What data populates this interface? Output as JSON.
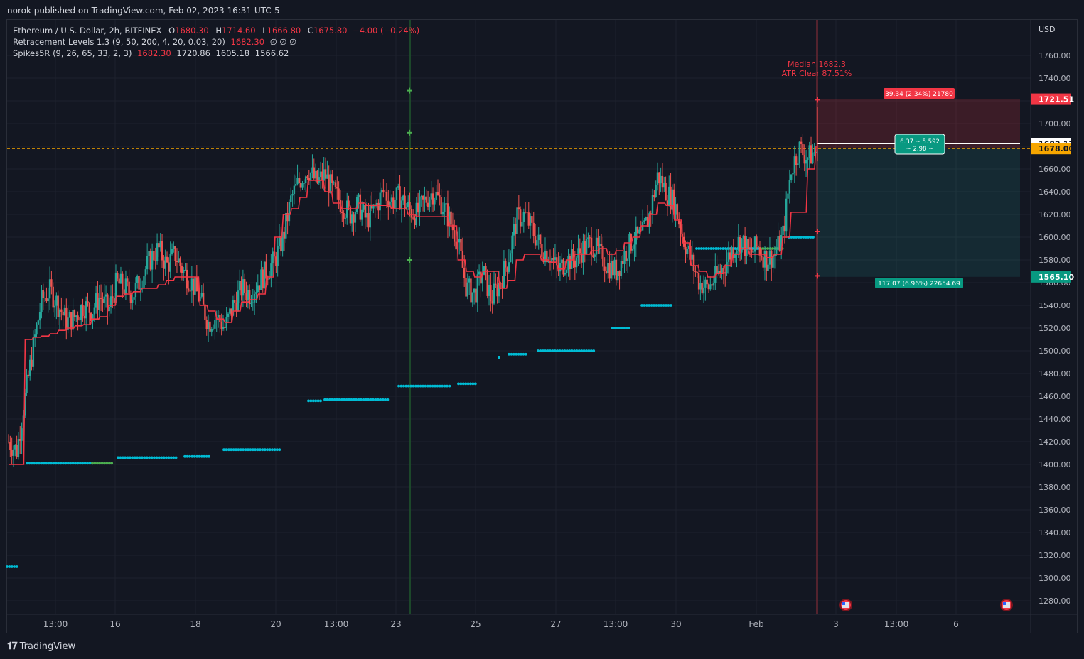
{
  "header": {
    "publisher": "norok published on TradingView.com, Feb 02, 2023 16:31 UTC-5"
  },
  "legend": {
    "symbol": "Ethereum / U.S. Dollar, 2h, BITFINEX",
    "o_label": "O",
    "o_val": "1680.30",
    "h_label": "H",
    "h_val": "1714.60",
    "l_label": "L",
    "l_val": "1666.80",
    "c_label": "C",
    "c_val": "1675.80",
    "change": "−4.00 (−0.24%)",
    "ind1_name": "Retracement Levels 1.3 (9, 50, 200, 4, 20, 0.03, 20)",
    "ind1_val": "1682.30",
    "ind1_nan": "∅  ∅  ∅",
    "ind2_name": "Spikes5R (9, 26, 65, 33, 2, 3)",
    "ind2_v1": "1682.30",
    "ind2_v2": "1720.86",
    "ind2_v3": "1605.18",
    "ind2_v4": "1566.62"
  },
  "footer": {
    "brand": "TradingView"
  },
  "colors": {
    "up": "#26a69a",
    "down": "#ef5350",
    "line": "#f23645",
    "dots": "#00bcd4",
    "dots_green": "#4caf50",
    "orange": "#f7a600",
    "bg": "#131722"
  },
  "chart_data": {
    "type": "candlestick",
    "currency": "USD",
    "ylim": [
      1268,
      1775
    ],
    "y_ticks": [
      "1760.00",
      "1740.00",
      "1720.00",
      "1700.00",
      "1680.00",
      "1660.00",
      "1640.00",
      "1620.00",
      "1600.00",
      "1580.00",
      "1560.00",
      "1540.00",
      "1520.00",
      "1500.00",
      "1480.00",
      "1460.00",
      "1440.00",
      "1420.00",
      "1400.00",
      "1380.00",
      "1360.00",
      "1340.00",
      "1320.00",
      "1300.00",
      "1280.00"
    ],
    "x_ticks": [
      "13:00",
      "16",
      "18",
      "20",
      "13:00",
      "23",
      "25",
      "27",
      "13:00",
      "30",
      "Feb",
      "3",
      "13:00",
      "6"
    ],
    "price_labels": {
      "stop": "1721.51",
      "current": "1682.17",
      "last": "1678.00",
      "target": "1565.10"
    },
    "position": {
      "risk_label": "39.34 (2.34%) 21780",
      "rr_line1": "6.37 ~ 5.592",
      "rr_line2": "~ 2.98 ~",
      "reward_label": "117.07 (6.96%) 22654.69"
    },
    "annotation": {
      "line1": "Median 1682.3",
      "line2": "ATR Clear 87.51%"
    },
    "close_path": [
      1420,
      1412,
      1460,
      1505,
      1545,
      1553,
      1540,
      1525,
      1530,
      1540,
      1535,
      1548,
      1535,
      1560,
      1555,
      1550,
      1565,
      1580,
      1590,
      1575,
      1585,
      1570,
      1560,
      1545,
      1525,
      1530,
      1520,
      1540,
      1555,
      1550,
      1560,
      1570,
      1580,
      1600,
      1635,
      1650,
      1660,
      1648,
      1655,
      1640,
      1630,
      1620,
      1628,
      1615,
      1625,
      1640,
      1632,
      1635,
      1625,
      1620,
      1632,
      1640,
      1630,
      1615,
      1595,
      1555,
      1550,
      1570,
      1545,
      1560,
      1580,
      1615,
      1620,
      1605,
      1590,
      1585,
      1570,
      1580,
      1580,
      1590,
      1595,
      1585,
      1575,
      1570,
      1585,
      1598,
      1600,
      1620,
      1655,
      1640,
      1630,
      1600,
      1580,
      1560,
      1555,
      1565,
      1575,
      1590,
      1598,
      1585,
      1592,
      1580,
      1585,
      1600,
      1660,
      1678,
      1670,
      1676
    ],
    "line_path": [
      1400,
      1400,
      1510,
      1512,
      1513,
      1515,
      1518,
      1520,
      1522,
      1523,
      1528,
      1530,
      1540,
      1548,
      1550,
      1552,
      1555,
      1555,
      1558,
      1562,
      1565,
      1565,
      1565,
      1540,
      1535,
      1528,
      1525,
      1535,
      1543,
      1545,
      1550,
      1565,
      1600,
      1620,
      1625,
      1635,
      1650,
      1650,
      1640,
      1630,
      1625,
      1625,
      1630,
      1628,
      1628,
      1628,
      1625,
      1625,
      1620,
      1618,
      1618,
      1618,
      1618,
      1610,
      1580,
      1570,
      1565,
      1570,
      1570,
      1555,
      1562,
      1580,
      1585,
      1585,
      1580,
      1578,
      1572,
      1580,
      1585,
      1585,
      1588,
      1590,
      1585,
      1588,
      1595,
      1600,
      1610,
      1620,
      1630,
      1628,
      1615,
      1595,
      1575,
      1570,
      1565,
      1568,
      1575,
      1585,
      1590,
      1585,
      1585,
      1582,
      1585,
      1600,
      1622,
      1622,
      1660,
      1680
    ]
  }
}
